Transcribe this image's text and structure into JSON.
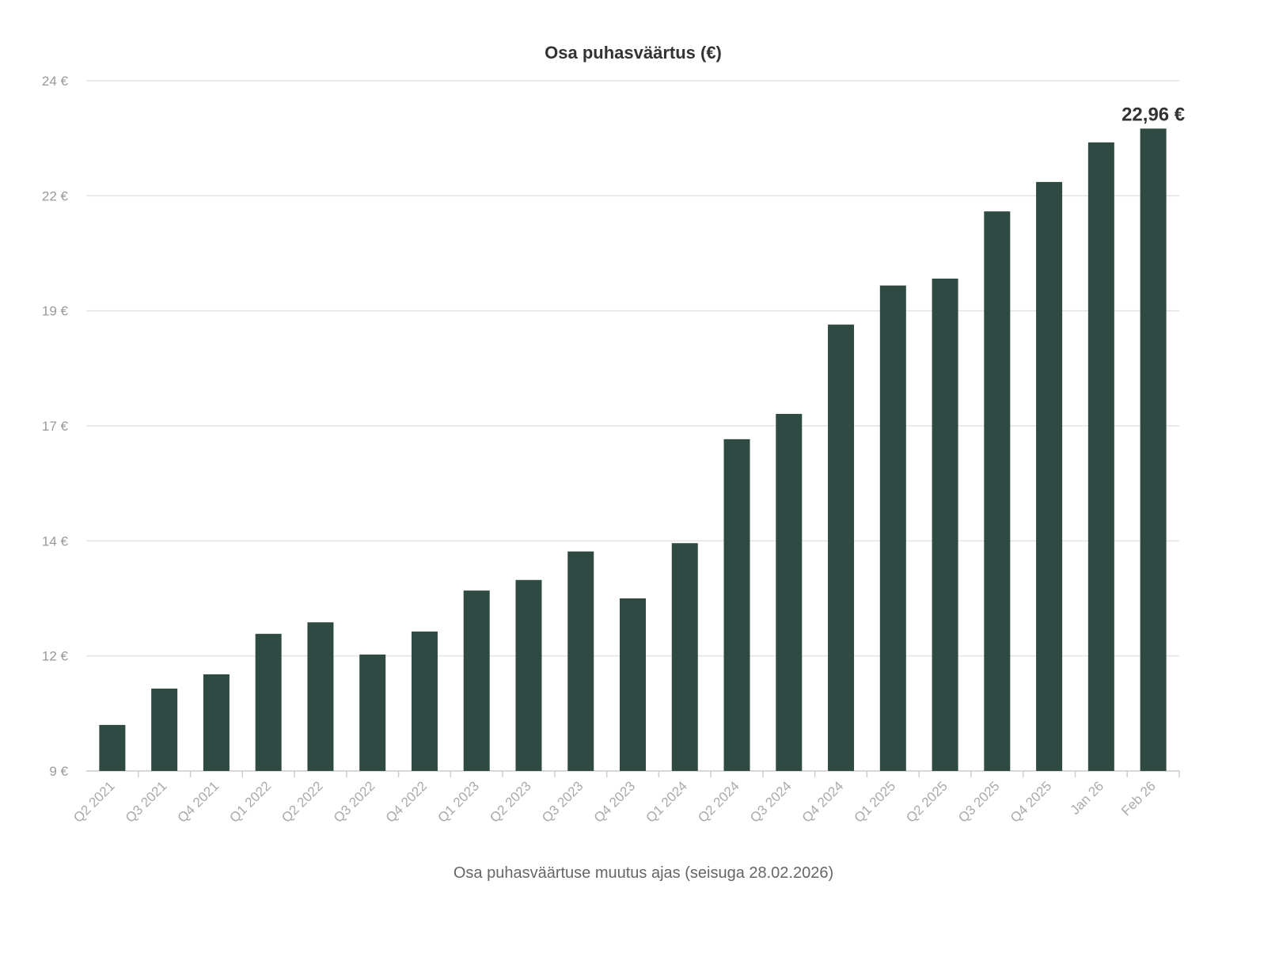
{
  "chart_data": {
    "type": "bar",
    "title": "Osa puhasväärtus (€)",
    "xlabel": "Osa puhasväärtuse muutus ajas (seisuga 28.02.2026)",
    "ylabel": "",
    "ylim": [
      9,
      24
    ],
    "yticks": [
      9,
      11.5,
      14,
      16.5,
      19,
      21.5,
      24
    ],
    "ytick_labels": [
      "9 €",
      "12 €",
      "14 €",
      "17 €",
      "19 €",
      "22 €",
      "24 €"
    ],
    "grid": true,
    "bar_color": "#2f4a42",
    "categories": [
      "Q2 2021",
      "Q3 2021",
      "Q4 2021",
      "Q1 2022",
      "Q2 2022",
      "Q3 2022",
      "Q4 2022",
      "Q1 2023",
      "Q2 2023",
      "Q3 2023",
      "Q4 2023",
      "Q1 2024",
      "Q2 2024",
      "Q3 2024",
      "Q4 2024",
      "Q1 2025",
      "Q2 2025",
      "Q3 2025",
      "Q4 2025",
      "Jan 26",
      "Feb 26"
    ],
    "values": [
      10.0,
      10.79,
      11.1,
      11.98,
      12.23,
      11.53,
      12.03,
      12.92,
      13.15,
      13.77,
      12.75,
      13.95,
      16.21,
      16.76,
      18.7,
      19.55,
      19.7,
      21.16,
      21.8,
      22.66,
      22.96
    ],
    "data_label": {
      "index": 20,
      "text": "22,96 €"
    }
  }
}
